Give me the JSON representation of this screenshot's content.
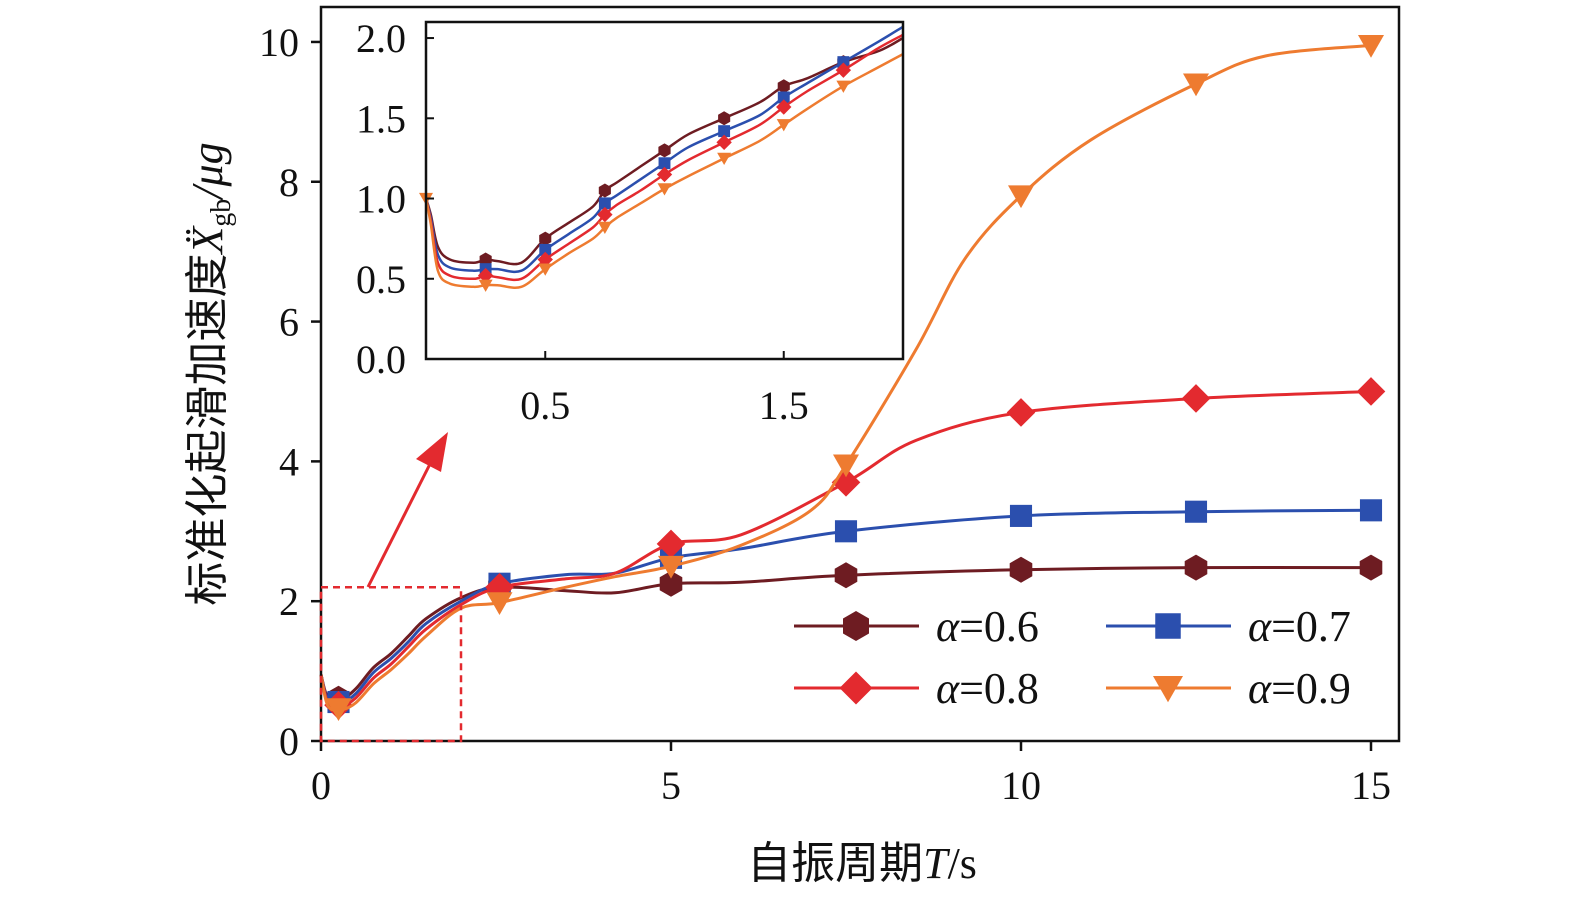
{
  "chart_data": {
    "type": "line",
    "xlabel_cjk": "自振周期",
    "xlabel_var": "T",
    "xlabel_unit": "/s",
    "ylabel_cjk": "标准化起滑加速度",
    "ylabel_var": "Ẍ",
    "ylabel_sub": "gb",
    "ylabel_unit": "/μg",
    "xlim": [
      0,
      15.4
    ],
    "ylim": [
      0,
      10.5
    ],
    "xticks": [
      "0",
      "5",
      "10",
      "15"
    ],
    "yticks": [
      "0",
      "2",
      "4",
      "6",
      "8",
      "10"
    ],
    "grid": false,
    "legend_position": "bottom-right",
    "series": [
      {
        "name": "α=0.6",
        "color": "#6e1c22",
        "marker": "hexagon",
        "x": [
          0,
          0.1,
          0.3,
          0.5,
          0.75,
          1.0,
          1.25,
          1.5,
          2.0,
          2.55,
          3.5,
          4.2,
          5.0,
          6.0,
          7.5,
          10.0,
          12.5,
          15.0
        ],
        "y": [
          0.95,
          0.62,
          0.6,
          0.75,
          1.05,
          1.25,
          1.5,
          1.75,
          2.05,
          2.2,
          2.15,
          2.12,
          2.25,
          2.27,
          2.37,
          2.45,
          2.48,
          2.48
        ],
        "marker_x": [
          0.25,
          2.55,
          5.0,
          7.5,
          10.0,
          12.5,
          15.0
        ]
      },
      {
        "name": "α=0.7",
        "color": "#2b4fae",
        "marker": "square",
        "x": [
          0,
          0.1,
          0.3,
          0.5,
          0.75,
          1.0,
          1.25,
          1.5,
          2.0,
          2.55,
          3.5,
          4.2,
          5.0,
          6.0,
          7.5,
          10.0,
          12.5,
          15.0
        ],
        "y": [
          0.95,
          0.58,
          0.55,
          0.68,
          0.98,
          1.18,
          1.42,
          1.68,
          2.0,
          2.25,
          2.38,
          2.4,
          2.62,
          2.75,
          3.0,
          3.22,
          3.28,
          3.3
        ],
        "marker_x": [
          0.25,
          2.55,
          5.0,
          7.5,
          10.0,
          12.5,
          15.0
        ]
      },
      {
        "name": "α=0.8",
        "color": "#e32a2f",
        "marker": "diamond",
        "x": [
          0,
          0.1,
          0.3,
          0.5,
          0.75,
          1.0,
          1.25,
          1.5,
          2.0,
          2.55,
          3.5,
          4.2,
          5.0,
          6.0,
          7.5,
          8.5,
          10.0,
          12.5,
          15.0
        ],
        "y": [
          0.95,
          0.55,
          0.5,
          0.62,
          0.9,
          1.1,
          1.35,
          1.6,
          1.95,
          2.2,
          2.32,
          2.4,
          2.82,
          2.95,
          3.7,
          4.3,
          4.7,
          4.9,
          5.0
        ],
        "marker_x": [
          0.25,
          2.55,
          5.0,
          7.5,
          10.0,
          12.5,
          15.0
        ]
      },
      {
        "name": "α=0.9",
        "color": "#ee7b30",
        "marker": "triangle-down",
        "x": [
          0,
          0.1,
          0.3,
          0.5,
          0.75,
          1.0,
          1.25,
          1.5,
          2.0,
          2.55,
          3.5,
          4.2,
          5.0,
          6.0,
          7.0,
          7.5,
          8.5,
          9.2,
          10.0,
          11.0,
          12.5,
          13.5,
          15.0
        ],
        "y": [
          0.95,
          0.5,
          0.45,
          0.55,
          0.82,
          1.02,
          1.25,
          1.5,
          1.9,
          1.98,
          2.2,
          2.35,
          2.5,
          2.8,
          3.3,
          3.95,
          5.6,
          6.9,
          7.8,
          8.6,
          9.4,
          9.8,
          9.95
        ],
        "marker_x": [
          0.25,
          2.55,
          5.0,
          7.5,
          10.0,
          12.5,
          15.0
        ]
      }
    ],
    "inset": {
      "xlim": [
        0,
        2.0
      ],
      "ylim": [
        0,
        2.1
      ],
      "xticks": [
        "0.5",
        "1.5"
      ],
      "yticks": [
        "0.0",
        "0.5",
        "1.0",
        "1.5",
        "2.0"
      ],
      "zoom_box_xlim": [
        0,
        2.0
      ],
      "zoom_box_ylim": [
        0,
        2.2
      ],
      "series": [
        {
          "name": "α=0.6",
          "x": [
            0,
            0.02,
            0.05,
            0.1,
            0.2,
            0.25,
            0.3,
            0.4,
            0.5,
            0.6,
            0.7,
            0.75,
            0.8,
            0.9,
            1.0,
            1.1,
            1.25,
            1.4,
            1.5,
            1.6,
            1.75,
            1.9,
            2.0
          ],
          "y": [
            1.0,
            0.9,
            0.7,
            0.62,
            0.6,
            0.62,
            0.61,
            0.6,
            0.75,
            0.85,
            0.95,
            1.05,
            1.1,
            1.2,
            1.3,
            1.4,
            1.5,
            1.6,
            1.7,
            1.75,
            1.85,
            1.92,
            2.0
          ],
          "marker_x": [
            0.25,
            0.5,
            0.75,
            1.0,
            1.25,
            1.5,
            1.75
          ]
        },
        {
          "name": "α=0.7",
          "x": [
            0,
            0.02,
            0.05,
            0.1,
            0.2,
            0.25,
            0.3,
            0.4,
            0.5,
            0.6,
            0.7,
            0.75,
            0.8,
            0.9,
            1.0,
            1.1,
            1.25,
            1.4,
            1.5,
            1.6,
            1.75,
            1.9,
            2.0
          ],
          "y": [
            1.0,
            0.88,
            0.65,
            0.57,
            0.55,
            0.56,
            0.56,
            0.55,
            0.68,
            0.78,
            0.88,
            0.97,
            1.02,
            1.12,
            1.22,
            1.32,
            1.42,
            1.52,
            1.63,
            1.72,
            1.85,
            1.98,
            2.07
          ],
          "marker_x": [
            0.25,
            0.5,
            0.75,
            1.0,
            1.25,
            1.5,
            1.75
          ]
        },
        {
          "name": "α=0.8",
          "x": [
            0,
            0.02,
            0.05,
            0.1,
            0.2,
            0.25,
            0.3,
            0.4,
            0.5,
            0.6,
            0.7,
            0.75,
            0.8,
            0.9,
            1.0,
            1.1,
            1.25,
            1.4,
            1.5,
            1.6,
            1.75,
            1.9,
            2.0
          ],
          "y": [
            1.0,
            0.86,
            0.6,
            0.52,
            0.5,
            0.52,
            0.51,
            0.5,
            0.62,
            0.72,
            0.82,
            0.9,
            0.96,
            1.05,
            1.15,
            1.24,
            1.35,
            1.46,
            1.57,
            1.67,
            1.8,
            1.94,
            2.02
          ],
          "marker_x": [
            0.25,
            0.5,
            0.75,
            1.0,
            1.25,
            1.5,
            1.75
          ]
        },
        {
          "name": "α=0.9",
          "x": [
            0,
            0.02,
            0.05,
            0.1,
            0.2,
            0.25,
            0.3,
            0.4,
            0.5,
            0.6,
            0.7,
            0.75,
            0.8,
            0.9,
            1.0,
            1.1,
            1.25,
            1.4,
            1.5,
            1.6,
            1.75,
            1.9,
            2.0
          ],
          "y": [
            1.0,
            0.84,
            0.55,
            0.47,
            0.45,
            0.46,
            0.46,
            0.45,
            0.56,
            0.66,
            0.75,
            0.82,
            0.88,
            0.97,
            1.06,
            1.14,
            1.25,
            1.36,
            1.46,
            1.56,
            1.7,
            1.82,
            1.9
          ],
          "marker_x": [
            0.25,
            0.5,
            0.75,
            1.0,
            1.25,
            1.5,
            1.75
          ]
        }
      ]
    }
  }
}
